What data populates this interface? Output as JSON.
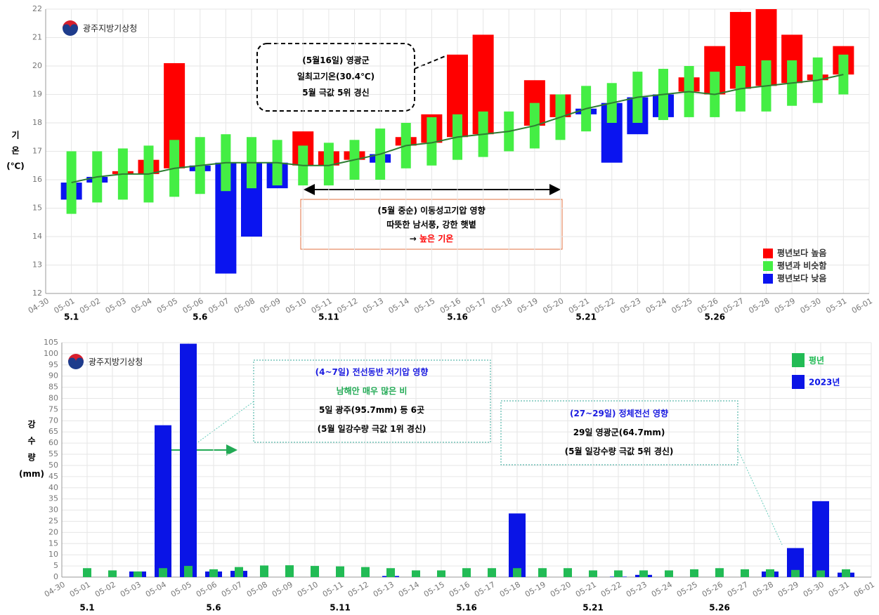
{
  "chart_data": [
    {
      "type": "range-bar",
      "logo": "광주지방기상청",
      "ylabel": [
        "기",
        "온",
        "(℃)"
      ],
      "categories": [
        "04-30",
        "05-01",
        "05-02",
        "05-03",
        "05-04",
        "05-05",
        "05-06",
        "05-07",
        "05-08",
        "05-09",
        "05-10",
        "05-11",
        "05-12",
        "05-13",
        "05-14",
        "05-15",
        "05-16",
        "05-17",
        "05-18",
        "05-19",
        "05-20",
        "05-21",
        "05-22",
        "05-23",
        "05-24",
        "05-25",
        "05-26",
        "05-27",
        "05-28",
        "05-29",
        "05-30",
        "05-31",
        "06-01"
      ],
      "normal_low": [
        null,
        14.8,
        15.2,
        15.3,
        15.2,
        15.4,
        15.5,
        15.6,
        15.7,
        15.8,
        15.8,
        15.8,
        16.0,
        16.0,
        16.4,
        16.5,
        16.7,
        16.8,
        17.0,
        17.1,
        17.4,
        17.7,
        18.0,
        18.0,
        18.1,
        18.2,
        18.2,
        18.4,
        18.4,
        18.6,
        18.7,
        19.0,
        null
      ],
      "normal_high": [
        null,
        17.0,
        17.0,
        17.1,
        17.2,
        17.4,
        17.5,
        17.6,
        17.5,
        17.4,
        17.2,
        17.3,
        17.4,
        17.8,
        18.0,
        18.2,
        18.3,
        18.4,
        18.4,
        18.7,
        19.0,
        19.3,
        19.4,
        19.8,
        19.9,
        20.0,
        19.8,
        20.0,
        20.2,
        20.2,
        20.3,
        20.4,
        null
      ],
      "normal_mean": [
        null,
        15.9,
        16.1,
        16.2,
        16.2,
        16.4,
        16.5,
        16.6,
        16.6,
        16.6,
        16.5,
        16.5,
        16.7,
        16.9,
        17.2,
        17.3,
        17.5,
        17.6,
        17.7,
        17.9,
        18.2,
        18.5,
        18.7,
        18.9,
        19.0,
        19.1,
        19.0,
        19.2,
        19.3,
        19.4,
        19.5,
        19.7,
        null
      ],
      "observed": [
        null,
        15.3,
        15.9,
        16.3,
        16.7,
        20.1,
        16.3,
        12.7,
        14.0,
        15.7,
        17.7,
        17.0,
        17.0,
        16.6,
        17.5,
        18.3,
        20.4,
        21.1,
        17.7,
        19.5,
        19.0,
        18.3,
        16.6,
        17.6,
        18.2,
        19.6,
        20.7,
        21.9,
        22.0,
        21.1,
        19.7,
        20.7,
        null
      ],
      "line_color": "#2e7d32",
      "legend": [
        {
          "label": "평년보다 높음",
          "color": "#ff0000"
        },
        {
          "label": "평년과 비슷함",
          "color": "#44ee44"
        },
        {
          "label": "평년보다 낮음",
          "color": "#0a14f0"
        }
      ],
      "ylim": [
        12,
        22
      ],
      "yticks": [
        12,
        13,
        14,
        15,
        16,
        17,
        18,
        19,
        20,
        21,
        22
      ],
      "grid": true,
      "period_labels": [
        "5.1",
        "5.6",
        "5.11",
        "5.16",
        "5.21",
        "5.26"
      ],
      "annotations": [
        {
          "lines": [
            [
              {
                "text": "(5월16일) 영광군",
                "color": "#000000"
              }
            ],
            [
              {
                "text": "일최고기온(30.4℃)",
                "color": "#000000"
              }
            ],
            [
              {
                "text": "5월 극값 5위 경신",
                "color": "#000000"
              }
            ]
          ]
        },
        {
          "lines": [
            [
              {
                "text": "(5월 중순) 이동성고기압 영향",
                "color": "#000000"
              }
            ],
            [
              {
                "text": "따뜻한 남서풍, 강한 햇볕",
                "color": "#000000"
              }
            ],
            [
              {
                "text": "→ ",
                "color": "#000000"
              },
              {
                "text": "높은 기온",
                "color": "#ff0000"
              }
            ]
          ]
        }
      ]
    },
    {
      "type": "bar",
      "logo": "광주지방기상청",
      "ylabel": [
        "강",
        "수",
        "량",
        "(mm)"
      ],
      "categories": [
        "04-30",
        "05-01",
        "05-02",
        "05-03",
        "05-04",
        "05-05",
        "05-06",
        "05-07",
        "05-08",
        "05-09",
        "05-10",
        "05-11",
        "05-12",
        "05-13",
        "05-14",
        "05-15",
        "05-16",
        "05-17",
        "05-18",
        "05-19",
        "05-20",
        "05-21",
        "05-22",
        "05-23",
        "05-24",
        "05-25",
        "05-26",
        "05-27",
        "05-28",
        "05-29",
        "05-30",
        "05-31",
        "06-01"
      ],
      "series": [
        {
          "name": "평년",
          "color": "#22bb55",
          "values": [
            null,
            4,
            3,
            2.5,
            4,
            5,
            3.5,
            4.5,
            5.2,
            5.3,
            5,
            4.8,
            4.5,
            4,
            3,
            3,
            4,
            4,
            4,
            4,
            4,
            3,
            3,
            3,
            3,
            3.5,
            4,
            3.5,
            3.5,
            3.2,
            3,
            3.5,
            null
          ]
        },
        {
          "name": "2023년",
          "color": "#0a14e6",
          "values": [
            null,
            0,
            0,
            2.5,
            68,
            104.5,
            2.5,
            2.8,
            0,
            0,
            0,
            0,
            0,
            0.5,
            0,
            0,
            0,
            0,
            28.5,
            0,
            0,
            0,
            0.2,
            1,
            0,
            0,
            0,
            0,
            2.5,
            13,
            34,
            2,
            null
          ]
        }
      ],
      "ylim": [
        0,
        105
      ],
      "yticks": [
        0,
        5,
        10,
        15,
        20,
        25,
        30,
        35,
        40,
        45,
        50,
        55,
        60,
        65,
        70,
        75,
        80,
        85,
        90,
        95,
        100,
        105
      ],
      "grid": true,
      "period_labels": [
        "5.1",
        "5.6",
        "5.11",
        "5.16",
        "5.21",
        "5.26"
      ],
      "annotations": [
        {
          "lines": [
            [
              {
                "text": "(4~7일) 전선동반 저기압 영향",
                "color": "#1a1ae0"
              }
            ],
            [
              {
                "text": "남해안 매우 많은 비",
                "color": "#22aa55"
              }
            ],
            [
              {
                "text": "5일 광주(95.7mm) 등 6곳",
                "color": "#000000"
              }
            ],
            [
              {
                "text": "(5월 일강수량 극값 1위 경신)",
                "color": "#000000"
              }
            ]
          ]
        },
        {
          "lines": [
            [
              {
                "text": "(27~29일) 정체전선 영향",
                "color": "#1a1ae0"
              }
            ],
            [
              {
                "text": "29일 영광군(64.7mm)",
                "color": "#000000"
              }
            ],
            [
              {
                "text": "(5월 일강수량 극값 5위 경신)",
                "color": "#000000"
              }
            ]
          ]
        }
      ]
    }
  ]
}
